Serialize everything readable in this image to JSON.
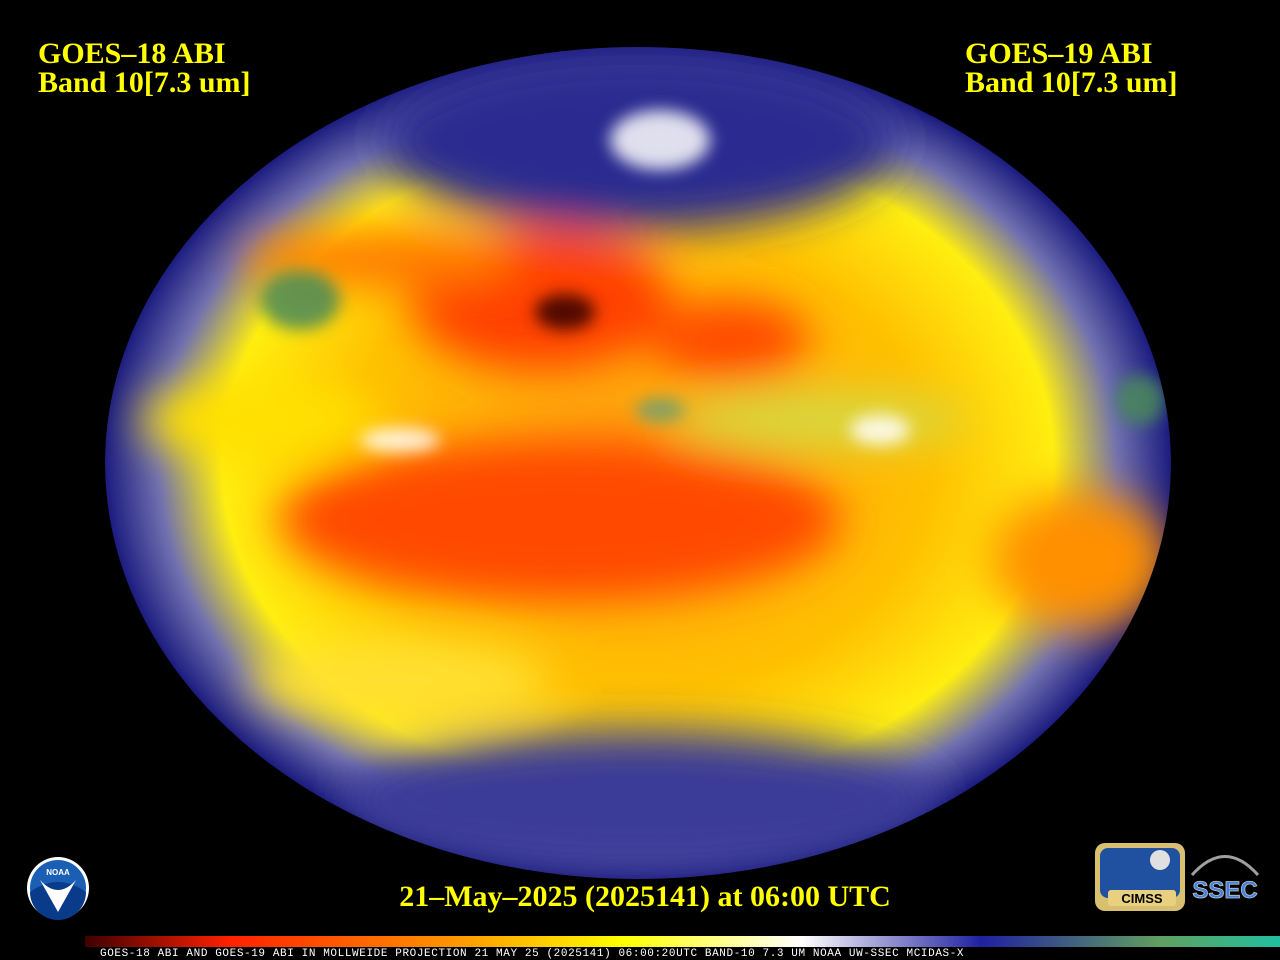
{
  "labels": {
    "left": {
      "satellite": "GOES–18 ABI",
      "band": "Band 10[7.3 um]"
    },
    "right": {
      "satellite": "GOES–19 ABI",
      "band": "Band 10[7.3 um]"
    },
    "timestamp": "21–May–2025 (2025141) at 06:00 UTC",
    "footer": "GOES-18 ABI AND GOES-19 ABI IN MOLLWEIDE PROJECTION 21 MAY 25 (2025141) 06:00:20UTC BAND-10 7.3 UM NOAA UW-SSEC MCIDAS-X"
  },
  "logos": {
    "noaa": "NOAA",
    "cimss": "CIMSS",
    "ssec": "SSEC"
  }
}
